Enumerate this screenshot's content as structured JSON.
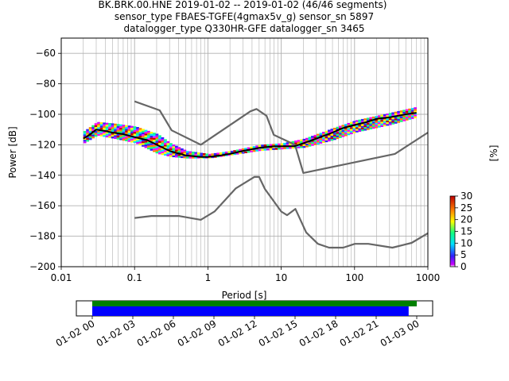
{
  "title_lines": [
    "BK.BRK.00.HNE   2019-01-02 -- 2019-01-02  (46/46 segments)",
    "sensor_type FBAES-TGFE(4gmax5v_g) sensor_sn 5897",
    "datalogger_type Q330HR-GFE datalogger_sn 3465"
  ],
  "chart_data": [
    {
      "type": "heatmap",
      "xlabel": "Period [s]",
      "ylabel": "Power [dB]",
      "x_scale": "log",
      "xlim": [
        0.01,
        1000
      ],
      "ylim": [
        -200,
        -50
      ],
      "x_ticks": [
        "0.01",
        "0.1",
        "1",
        "10",
        "100",
        "1000"
      ],
      "y_ticks": [
        "−200",
        "−180",
        "−160",
        "−140",
        "−120",
        "−100",
        "−80",
        "−60"
      ],
      "grid": true,
      "colorbar": {
        "label": "[%]",
        "ticks": [
          "0",
          "5",
          "10",
          "15",
          "20",
          "25",
          "30"
        ],
        "range": [
          0,
          30
        ]
      },
      "mode_curve": {
        "period": [
          0.02,
          0.025,
          0.03,
          0.04,
          0.05,
          0.07,
          0.1,
          0.15,
          0.2,
          0.3,
          0.5,
          0.8,
          1.0,
          1.5,
          2,
          3,
          5,
          8,
          10,
          15,
          20,
          30,
          50,
          70,
          100,
          150,
          200,
          300,
          500,
          700
        ],
        "power": [
          -116,
          -113,
          -110,
          -111,
          -112,
          -113,
          -115,
          -117,
          -120,
          -124,
          -127,
          -128,
          -128,
          -127,
          -126,
          -124,
          -122,
          -121,
          -121,
          -121,
          -119,
          -116,
          -112,
          -109,
          -107,
          -105,
          -103,
          -102,
          -100,
          -99
        ]
      },
      "psd_band": [
        {
          "period": 0.02,
          "p_lo": -119,
          "p_hi": -111
        },
        {
          "period": 0.03,
          "p_lo": -114,
          "p_hi": -105
        },
        {
          "period": 0.05,
          "p_lo": -116,
          "p_hi": -106
        },
        {
          "period": 0.1,
          "p_lo": -119,
          "p_hi": -108
        },
        {
          "period": 0.2,
          "p_lo": -126,
          "p_hi": -113
        },
        {
          "period": 0.3,
          "p_lo": -128,
          "p_hi": -119
        },
        {
          "period": 0.5,
          "p_lo": -129,
          "p_hi": -124
        },
        {
          "period": 1.0,
          "p_lo": -129,
          "p_hi": -126
        },
        {
          "period": 2.0,
          "p_lo": -127,
          "p_hi": -124
        },
        {
          "period": 5.0,
          "p_lo": -124,
          "p_hi": -120
        },
        {
          "period": 10,
          "p_lo": -123,
          "p_hi": -119
        },
        {
          "period": 20,
          "p_lo": -122,
          "p_hi": -116
        },
        {
          "period": 50,
          "p_lo": -117,
          "p_hi": -109
        },
        {
          "period": 100,
          "p_lo": -112,
          "p_hi": -104
        },
        {
          "period": 300,
          "p_lo": -107,
          "p_hi": -99
        },
        {
          "period": 700,
          "p_lo": -102,
          "p_hi": -95
        }
      ],
      "nhnm": {
        "period": [
          0.1,
          0.22,
          0.32,
          0.8,
          3.8,
          4.6,
          6.3,
          7.9,
          15.4,
          20,
          354.8,
          1000
        ],
        "power": [
          -91.5,
          -97.4,
          -110.5,
          -120,
          -98,
          -96.5,
          -101,
          -113.5,
          -120,
          -138.5,
          -126,
          -112
        ]
      },
      "nlnm": {
        "period": [
          0.1,
          0.17,
          0.4,
          0.8,
          1.24,
          2.4,
          4.3,
          5.0,
          6.0,
          10,
          12,
          15.6,
          21.9,
          31.6,
          45,
          70,
          101,
          154,
          328,
          600,
          1000
        ],
        "power": [
          -168,
          -166.7,
          -166.7,
          -169.2,
          -163.7,
          -148.6,
          -141.1,
          -141.1,
          -149,
          -163.8,
          -166.2,
          -162.1,
          -177.5,
          -185,
          -187.5,
          -187.5,
          -185,
          -185,
          -187.5,
          -184.4,
          -178
        ]
      }
    },
    {
      "type": "bar",
      "x_ticks": [
        "01-02 00",
        "01-02 03",
        "01-02 06",
        "01-02 09",
        "01-02 12",
        "01-02 15",
        "01-02 18",
        "01-02 21",
        "01-03 00"
      ],
      "xlim_hours": [
        0,
        24
      ],
      "series": [
        {
          "color": "#008000",
          "start_hour": 0,
          "end_hour": 24.0
        },
        {
          "color": "#0000ff",
          "start_hour": 0,
          "end_hour": 23.4
        }
      ]
    }
  ],
  "colors": {
    "mode": "#000000",
    "noise_models": "#666666",
    "grid": "#b0b0b0",
    "coverage_data": "#008000",
    "coverage_psd": "#0000ff"
  }
}
